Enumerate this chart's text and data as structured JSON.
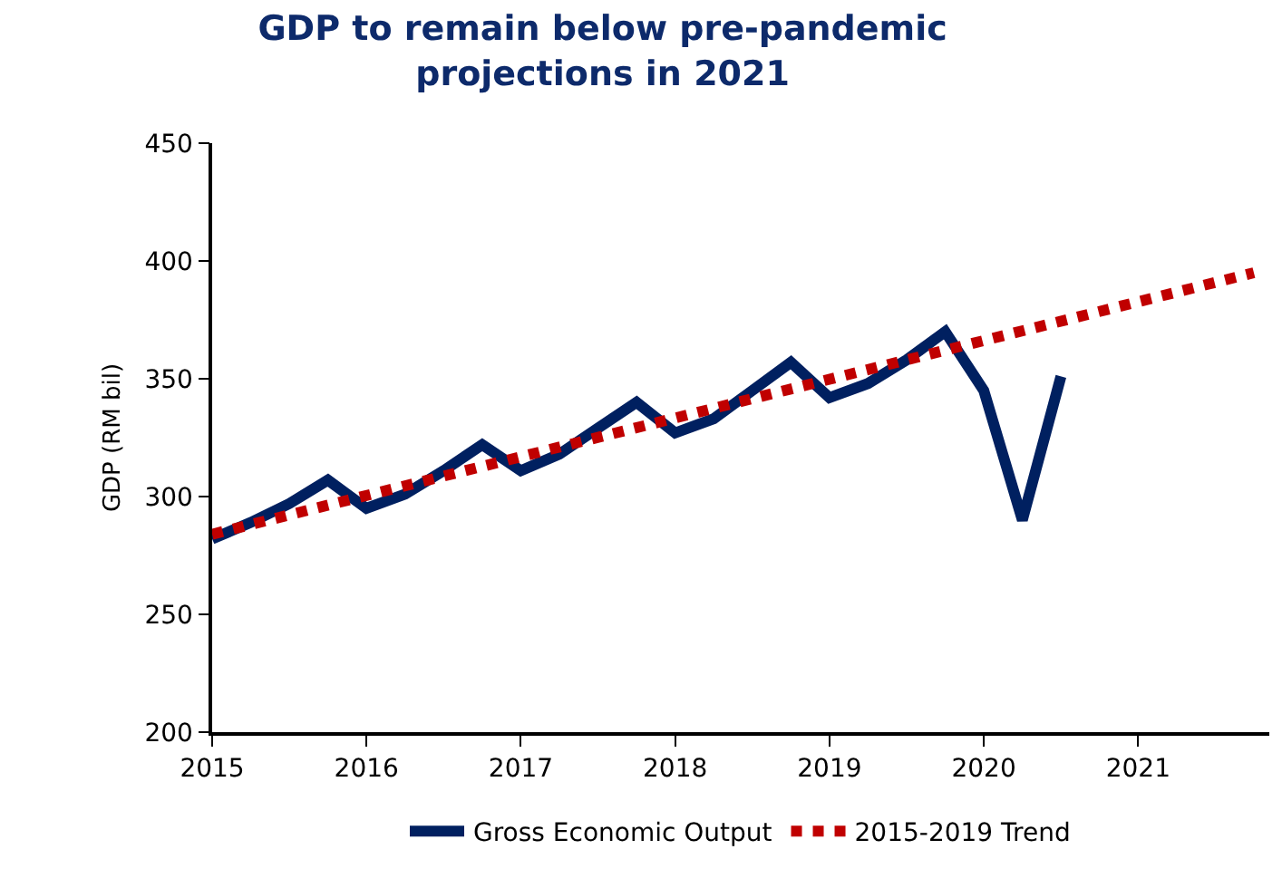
{
  "chart_data": {
    "type": "line",
    "title": "GDP to remain below pre-pandemic\nprojections in 2021",
    "ylabel": "GDP (RM bil)",
    "x": [
      2015,
      2015.25,
      2015.5,
      2015.75,
      2016,
      2016.25,
      2016.5,
      2016.75,
      2017,
      2017.25,
      2017.5,
      2017.75,
      2018,
      2018.25,
      2018.5,
      2018.75,
      2019,
      2019.25,
      2019.5,
      2019.75,
      2020,
      2020.25,
      2020.5
    ],
    "series": [
      {
        "name": "Gross Economic Output",
        "color": "#002060",
        "line_style": "solid",
        "values": [
          282,
          289,
          297,
          307,
          295,
          301,
          311,
          322,
          311,
          318,
          329,
          340,
          327,
          333,
          345,
          357,
          342,
          348,
          358,
          370,
          345,
          290,
          351
        ]
      },
      {
        "name": "2015-2019 Trend",
        "color": "#c00000",
        "line_style": "dotted",
        "x": [
          2015,
          2021.75
        ],
        "values": [
          284,
          395
        ]
      }
    ],
    "xlim": [
      2015,
      2021.85
    ],
    "xticks": [
      2015,
      2016,
      2017,
      2018,
      2019,
      2020,
      2021
    ],
    "ylim": [
      200,
      450
    ],
    "yticks": [
      200,
      250,
      300,
      350,
      400,
      450
    ],
    "grid": false,
    "legend": "bottom",
    "marker": "none"
  }
}
